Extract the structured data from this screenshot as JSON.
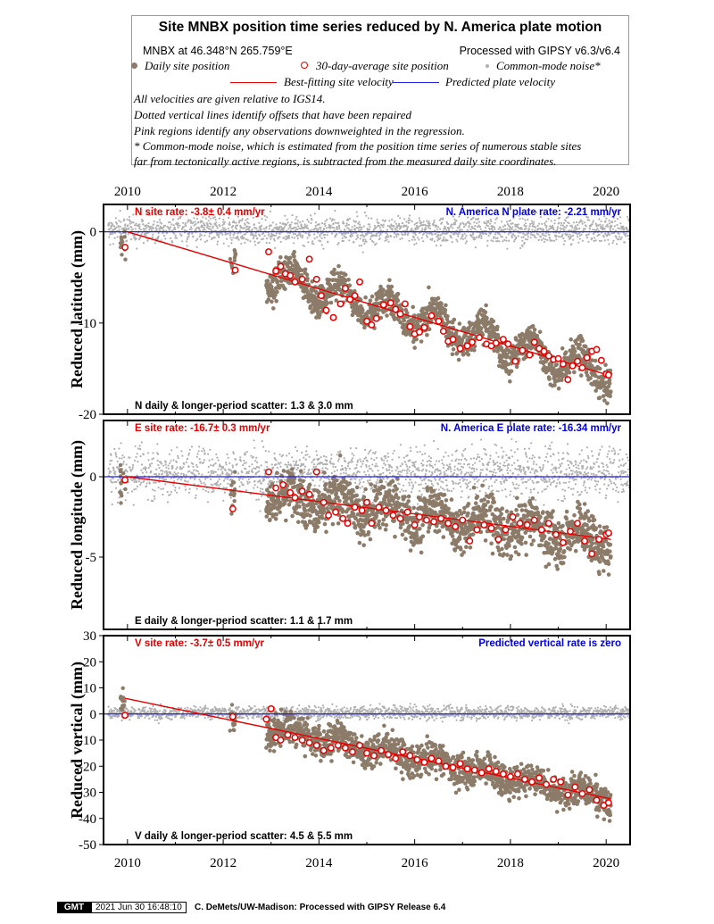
{
  "header": {
    "title": "Site MNBX position time series reduced by N. America plate motion",
    "site_location": "MNBX at 46.348°N 265.759°E",
    "processing": "Processed with GIPSY v6.3/v6.4",
    "legend": {
      "daily": "Daily site position",
      "avg30": "30-day-average site position",
      "cmn": "Common-mode noise*",
      "bestfit": "Best-fitting site velocity",
      "plate": "Predicted plate velocity"
    },
    "notes": [
      "All velocities are given relative to IGS14.",
      "Dotted vertical lines identify offsets that have been repaired",
      "Pink regions identify any observations downweighted in the regression.",
      "* Common-mode noise, which is estimated from the position time series of numerous stable sites",
      "far from tectonically active regions, is subtracted from the measured daily site coordinates."
    ]
  },
  "colors": {
    "daily": "#8c7b68",
    "avg30": "#e60000",
    "cmn": "#b0b0b0",
    "bestfit": "#e60000",
    "plate": "#1f1fe6",
    "site_rate_text": "#e00000",
    "plate_rate_text": "#0000e0"
  },
  "chart_data": [
    {
      "type": "scatter",
      "component": "north",
      "ylabel": "Reduced latitude (mm)",
      "ylim": [
        -20,
        3
      ],
      "yticks": [
        0,
        -10,
        -20
      ],
      "xlim": [
        2009.5,
        2020.5
      ],
      "xticks": [
        2010,
        2012,
        2014,
        2016,
        2018,
        2020
      ],
      "site_rate_label": "N site rate:  -3.8± 0.4 mm/yr",
      "plate_rate_label": "N. America N plate rate: -2.21 mm/yr",
      "scatter_label": "N daily & longer-period scatter:   1.3 &   3.0 mm",
      "best_fit_line": {
        "x": [
          2010.0,
          2020.1
        ],
        "y": [
          0.0,
          -15.8
        ]
      },
      "predicted_plate_line": {
        "x": [
          2009.5,
          2020.5
        ],
        "y": [
          0,
          0
        ]
      },
      "avg30": {
        "x": [
          2009.95,
          2012.25,
          2012.95,
          2013.1,
          2013.2,
          2013.3,
          2013.4,
          2013.5,
          2013.65,
          2013.8,
          2013.95,
          2014.05,
          2014.15,
          2014.3,
          2014.45,
          2014.55,
          2014.65,
          2014.75,
          2014.85,
          2015.0,
          2015.1,
          2015.2,
          2015.35,
          2015.5,
          2015.6,
          2015.7,
          2015.8,
          2015.9,
          2016.0,
          2016.1,
          2016.2,
          2016.35,
          2016.5,
          2016.6,
          2016.7,
          2016.8,
          2016.95,
          2017.1,
          2017.2,
          2017.35,
          2017.5,
          2017.6,
          2017.7,
          2017.85,
          2017.95,
          2018.1,
          2018.25,
          2018.4,
          2018.5,
          2018.6,
          2018.7,
          2018.8,
          2018.9,
          2019.0,
          2019.1,
          2019.2,
          2019.3,
          2019.4,
          2019.5,
          2019.6,
          2019.7,
          2019.8,
          2019.9,
          2020.0,
          2020.05
        ],
        "y": [
          -1.7,
          -4.2,
          -2.2,
          -4.3,
          -3.8,
          -4.6,
          -4.8,
          -5.5,
          -5.2,
          -3.0,
          -5.2,
          -7.0,
          -8.6,
          -9.4,
          -7.9,
          -6.2,
          -7.4,
          -7.0,
          -5.5,
          -9.8,
          -10.2,
          -9.5,
          -8.0,
          -7.8,
          -8.5,
          -9.0,
          -7.9,
          -10.4,
          -11.2,
          -11.0,
          -10.5,
          -9.2,
          -9.8,
          -10.9,
          -12.0,
          -11.8,
          -12.8,
          -12.5,
          -12.1,
          -11.6,
          -12.3,
          -12.5,
          -12.2,
          -11.8,
          -12.3,
          -14.2,
          -13.0,
          -13.5,
          -12.1,
          -12.8,
          -13.1,
          -13.6,
          -14.0,
          -13.9,
          -14.5,
          -16.2,
          -14.7,
          -14.2,
          -14.9,
          -13.8,
          -13.1,
          -12.9,
          -14.1,
          -15.6,
          -15.7
        ]
      },
      "daily": {
        "center_start": 0.0,
        "center_slope": -1.56,
        "seasonal_amplitude": 1.5,
        "scatter": 1.3,
        "data_start": 2012.9,
        "isolated_epochs": [
          2009.9,
          2012.2
        ]
      },
      "common_mode": {
        "center": 0.2,
        "scatter": 1.2,
        "x_start": 2009.6,
        "x_end": 2020.5
      }
    },
    {
      "type": "scatter",
      "component": "east",
      "ylabel": "Reduced longitude (mm)",
      "ylim": [
        -9.5,
        3.5
      ],
      "yticks": [
        0,
        -5
      ],
      "xlim": [
        2009.5,
        2020.5
      ],
      "xticks": [
        2010,
        2012,
        2014,
        2016,
        2018,
        2020
      ],
      "site_rate_label": "E site rate: -16.7± 0.3 mm/yr",
      "plate_rate_label": "N. America E plate rate: -16.34 mm/yr",
      "scatter_label": "E daily & longer-period scatter:   1.1 &   1.7 mm",
      "best_fit_line": {
        "x": [
          2010.0,
          2020.1
        ],
        "y": [
          0.0,
          -3.9
        ]
      },
      "predicted_plate_line": {
        "x": [
          2009.5,
          2020.5
        ],
        "y": [
          0,
          0
        ]
      },
      "avg30": {
        "x": [
          2009.95,
          2012.2,
          2012.95,
          2013.1,
          2013.25,
          2013.4,
          2013.5,
          2013.65,
          2013.8,
          2013.95,
          2014.1,
          2014.2,
          2014.35,
          2014.5,
          2014.6,
          2014.75,
          2014.9,
          2015.0,
          2015.1,
          2015.25,
          2015.4,
          2015.55,
          2015.7,
          2015.85,
          2016.0,
          2016.1,
          2016.25,
          2016.4,
          2016.55,
          2016.7,
          2016.85,
          2017.0,
          2017.15,
          2017.3,
          2017.45,
          2017.6,
          2017.75,
          2017.9,
          2018.05,
          2018.2,
          2018.35,
          2018.5,
          2018.65,
          2018.8,
          2018.95,
          2019.1,
          2019.25,
          2019.4,
          2019.55,
          2019.7,
          2019.85,
          2020.0,
          2020.05
        ],
        "y": [
          -0.2,
          -2.0,
          0.3,
          -0.7,
          -0.5,
          -1.0,
          -1.3,
          -0.9,
          -1.1,
          0.3,
          -1.6,
          -2.4,
          -2.2,
          -2.6,
          -2.9,
          -1.9,
          -2.1,
          -1.6,
          -2.9,
          -1.9,
          -2.1,
          -2.4,
          -2.6,
          -2.2,
          -3.0,
          -2.5,
          -2.7,
          -2.8,
          -2.6,
          -2.9,
          -3.1,
          -2.7,
          -4.0,
          -3.3,
          -3.0,
          -3.2,
          -3.9,
          -3.3,
          -2.5,
          -2.9,
          -3.0,
          -2.7,
          -3.3,
          -2.9,
          -3.6,
          -4.1,
          -3.4,
          -2.9,
          -4.0,
          -4.8,
          -3.9,
          -3.6,
          -3.5
        ]
      },
      "daily": {
        "center_start": 0.0,
        "center_slope": -0.39,
        "seasonal_amplitude": 0.6,
        "scatter": 1.1,
        "data_start": 2012.9,
        "isolated_epochs": [
          2009.9,
          2012.2
        ]
      },
      "common_mode": {
        "center": 0.3,
        "scatter": 1.2,
        "x_start": 2009.6,
        "x_end": 2020.5
      }
    },
    {
      "type": "scatter",
      "component": "vertical",
      "ylabel": "Reduced vertical (mm)",
      "ylim": [
        -50,
        30
      ],
      "yticks": [
        30,
        20,
        10,
        0,
        -10,
        -20,
        -30,
        -40,
        -50
      ],
      "xlim": [
        2009.5,
        2020.5
      ],
      "xticks": [
        2010,
        2012,
        2014,
        2016,
        2018,
        2020
      ],
      "site_rate_label": "V site rate:  -3.7± 0.5 mm/yr",
      "plate_rate_label": "Predicted vertical rate is zero",
      "scatter_label": "V daily & longer-period scatter:   4.5 &   5.5 mm",
      "best_fit_line": {
        "x": [
          2009.95,
          2020.1
        ],
        "y": [
          6.0,
          -32.5
        ]
      },
      "predicted_plate_line": {
        "x": [
          2009.5,
          2020.5
        ],
        "y": [
          0,
          0
        ]
      },
      "avg30": {
        "x": [
          2009.95,
          2012.2,
          2012.9,
          2013.0,
          2013.1,
          2013.2,
          2013.35,
          2013.5,
          2013.65,
          2013.8,
          2013.95,
          2014.1,
          2014.25,
          2014.4,
          2014.55,
          2014.7,
          2014.85,
          2015.0,
          2015.15,
          2015.3,
          2015.45,
          2015.6,
          2015.75,
          2015.9,
          2016.05,
          2016.2,
          2016.35,
          2016.5,
          2016.65,
          2016.8,
          2016.95,
          2017.1,
          2017.25,
          2017.4,
          2017.55,
          2017.7,
          2017.85,
          2018.0,
          2018.15,
          2018.3,
          2018.45,
          2018.6,
          2018.75,
          2018.9,
          2019.05,
          2019.2,
          2019.35,
          2019.5,
          2019.65,
          2019.8,
          2019.95,
          2020.05
        ],
        "y": [
          -0.5,
          -1.0,
          -2.0,
          2.0,
          -9.0,
          -10.0,
          -8.0,
          -9.0,
          -10.0,
          -11.0,
          -12.0,
          -14.0,
          -13.0,
          -12.0,
          -13.0,
          -14.5,
          -12.0,
          -15.0,
          -16.0,
          -14.0,
          -15.5,
          -17.0,
          -14.5,
          -16.0,
          -17.5,
          -18.5,
          -17.0,
          -18.0,
          -20.0,
          -20.5,
          -19.0,
          -21.0,
          -21.5,
          -22.5,
          -21.0,
          -22.0,
          -23.0,
          -24.0,
          -23.0,
          -25.0,
          -26.0,
          -24.5,
          -27.0,
          -25.0,
          -26.0,
          -31.0,
          -28.0,
          -30.5,
          -29.0,
          -33.0,
          -35.0,
          -34.0
        ]
      },
      "daily": {
        "center_start": 6.0,
        "center_slope": -3.8,
        "seasonal_amplitude": 2.0,
        "scatter": 4.5,
        "data_start": 2012.9,
        "isolated_epochs": [
          2009.9,
          2012.2
        ]
      },
      "common_mode": {
        "center": 0.5,
        "scatter": 2.0,
        "x_start": 2009.6,
        "x_end": 2020.5
      }
    }
  ],
  "footer": {
    "logo": "GMT",
    "timestamp": "2021 Jun 30 16:48:10",
    "credit": "C. DeMets/UW-Madison: Processed with GIPSY Release 6.4"
  }
}
